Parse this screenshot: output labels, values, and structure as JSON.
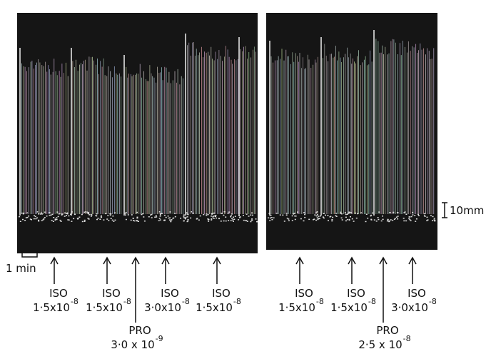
{
  "scale_bar": "10mm",
  "time_bar": "1 min",
  "annotations": [
    {
      "drug": "ISO",
      "mantissa": "1·5x10",
      "exponent": "-8"
    },
    {
      "drug": "ISO",
      "mantissa": "1·5x10",
      "exponent": "-8"
    },
    {
      "drug": "PRO",
      "mantissa": "3·0 x 10",
      "exponent": "-9"
    },
    {
      "drug": "ISO",
      "mantissa": "3·0x10",
      "exponent": "-8"
    },
    {
      "drug": "ISO",
      "mantissa": "1·5x10",
      "exponent": "-8"
    },
    {
      "drug": "ISO",
      "mantissa": "1·5x10",
      "exponent": "-8"
    },
    {
      "drug": "ISO",
      "mantissa": "1·5x10",
      "exponent": "-8"
    },
    {
      "drug": "PRO",
      "mantissa": "2·5 x 10",
      "exponent": "-8"
    },
    {
      "drug": "ISO",
      "mantissa": "3·0x10",
      "exponent": "-8"
    }
  ]
}
